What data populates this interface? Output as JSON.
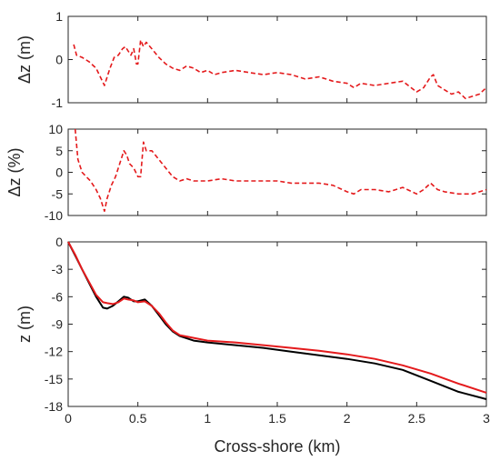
{
  "chart_data": [
    {
      "type": "line",
      "ylabel": "Δz (m)",
      "xlabel": "",
      "xlim": [
        0,
        3
      ],
      "ylim": [
        -1,
        1
      ],
      "yticks": [
        -1,
        0,
        1
      ],
      "ytick_labels": [
        "-1",
        "0",
        "1"
      ],
      "xticks": [
        0,
        0.5,
        1,
        1.5,
        2,
        2.5,
        3
      ],
      "xtick_labels": [],
      "series": [
        {
          "color": "#e41a1c",
          "style": "dashed",
          "x": [
            0.04,
            0.06,
            0.1,
            0.15,
            0.2,
            0.23,
            0.26,
            0.28,
            0.3,
            0.33,
            0.36,
            0.39,
            0.41,
            0.43,
            0.45,
            0.47,
            0.49,
            0.5,
            0.52,
            0.54,
            0.56,
            0.6,
            0.65,
            0.7,
            0.75,
            0.8,
            0.85,
            0.9,
            0.95,
            1.0,
            1.05,
            1.1,
            1.2,
            1.3,
            1.4,
            1.5,
            1.6,
            1.7,
            1.8,
            1.9,
            2.0,
            2.05,
            2.1,
            2.2,
            2.3,
            2.4,
            2.5,
            2.55,
            2.6,
            2.62,
            2.65,
            2.7,
            2.75,
            2.8,
            2.85,
            2.9,
            2.95,
            3.0
          ],
          "y": [
            0.35,
            0.1,
            0.05,
            -0.05,
            -0.2,
            -0.4,
            -0.6,
            -0.4,
            -0.2,
            0.05,
            0.1,
            0.25,
            0.3,
            0.2,
            0.1,
            0.25,
            -0.1,
            -0.1,
            0.45,
            0.3,
            0.4,
            0.25,
            0.05,
            -0.1,
            -0.2,
            -0.25,
            -0.15,
            -0.2,
            -0.3,
            -0.25,
            -0.35,
            -0.3,
            -0.25,
            -0.3,
            -0.35,
            -0.3,
            -0.35,
            -0.45,
            -0.4,
            -0.5,
            -0.55,
            -0.65,
            -0.55,
            -0.6,
            -0.55,
            -0.5,
            -0.75,
            -0.65,
            -0.4,
            -0.35,
            -0.6,
            -0.7,
            -0.8,
            -0.75,
            -0.9,
            -0.85,
            -0.8,
            -0.65
          ]
        }
      ]
    },
    {
      "type": "line",
      "ylabel": "Δz (%)",
      "xlabel": "",
      "xlim": [
        0,
        3
      ],
      "ylim": [
        -10,
        10
      ],
      "yticks": [
        -10,
        -5,
        0,
        5,
        10
      ],
      "ytick_labels": [
        "-10",
        "-5",
        "0",
        "5",
        "10"
      ],
      "xticks": [
        0,
        0.5,
        1,
        1.5,
        2,
        2.5,
        3
      ],
      "xtick_labels": [],
      "series": [
        {
          "color": "#e41a1c",
          "style": "dashed",
          "x": [
            0.05,
            0.07,
            0.1,
            0.13,
            0.16,
            0.2,
            0.23,
            0.26,
            0.28,
            0.31,
            0.34,
            0.37,
            0.4,
            0.42,
            0.44,
            0.47,
            0.5,
            0.52,
            0.54,
            0.56,
            0.6,
            0.65,
            0.7,
            0.75,
            0.8,
            0.85,
            0.9,
            1.0,
            1.1,
            1.2,
            1.3,
            1.4,
            1.5,
            1.6,
            1.7,
            1.8,
            1.9,
            2.0,
            2.05,
            2.1,
            2.2,
            2.3,
            2.4,
            2.5,
            2.55,
            2.6,
            2.65,
            2.7,
            2.8,
            2.9,
            3.0
          ],
          "y": [
            10,
            3,
            0,
            -1,
            -2,
            -4,
            -6,
            -9,
            -6,
            -3,
            -1,
            2,
            5,
            4,
            2,
            1,
            -1,
            -1,
            7,
            5,
            5,
            3,
            1,
            -1,
            -2,
            -1.5,
            -2,
            -2,
            -1.5,
            -2,
            -2,
            -2,
            -2,
            -2.5,
            -2.5,
            -2.5,
            -3,
            -4.5,
            -5,
            -4,
            -4,
            -4.5,
            -3.5,
            -5,
            -4,
            -2.5,
            -4,
            -4.5,
            -5,
            -5,
            -4
          ]
        }
      ]
    },
    {
      "type": "line",
      "ylabel": "z (m)",
      "xlabel": "Cross-shore (km)",
      "xlim": [
        0,
        3
      ],
      "ylim": [
        -18,
        0
      ],
      "yticks": [
        -18,
        -15,
        -12,
        -9,
        -6,
        -3,
        0
      ],
      "ytick_labels": [
        "-18",
        "-15",
        "-12",
        "-9",
        "-6",
        "-3",
        "0"
      ],
      "xticks": [
        0,
        0.5,
        1,
        1.5,
        2,
        2.5,
        3
      ],
      "xtick_labels": [
        "0",
        "0.5",
        "1",
        "1.5",
        "2",
        "2.5",
        "3"
      ],
      "series": [
        {
          "color": "#000000",
          "style": "solid",
          "x": [
            0,
            0.05,
            0.1,
            0.15,
            0.2,
            0.25,
            0.28,
            0.32,
            0.36,
            0.4,
            0.43,
            0.47,
            0.5,
            0.55,
            0.6,
            0.65,
            0.7,
            0.75,
            0.8,
            0.9,
            1.0,
            1.2,
            1.4,
            1.6,
            1.8,
            2.0,
            2.2,
            2.4,
            2.6,
            2.8,
            3.0
          ],
          "y": [
            0,
            -1.5,
            -3,
            -4.5,
            -6,
            -7.2,
            -7.3,
            -7,
            -6.5,
            -6.0,
            -6.1,
            -6.5,
            -6.5,
            -6.3,
            -7.0,
            -8.0,
            -9.0,
            -9.8,
            -10.3,
            -10.8,
            -11.0,
            -11.3,
            -11.6,
            -12.0,
            -12.4,
            -12.8,
            -13.3,
            -14.0,
            -15.2,
            -16.4,
            -17.2
          ]
        },
        {
          "color": "#e41a1c",
          "style": "solid",
          "x": [
            0,
            0.05,
            0.1,
            0.15,
            0.2,
            0.25,
            0.28,
            0.32,
            0.36,
            0.4,
            0.43,
            0.47,
            0.5,
            0.55,
            0.6,
            0.65,
            0.7,
            0.75,
            0.8,
            0.9,
            1.0,
            1.2,
            1.4,
            1.6,
            1.8,
            2.0,
            2.2,
            2.4,
            2.6,
            2.8,
            3.0
          ],
          "y": [
            0,
            -1.4,
            -3,
            -4.4,
            -5.8,
            -6.6,
            -6.7,
            -6.8,
            -6.6,
            -6.2,
            -6.3,
            -6.4,
            -6.6,
            -6.5,
            -7.0,
            -7.8,
            -8.8,
            -9.7,
            -10.2,
            -10.5,
            -10.8,
            -11.0,
            -11.3,
            -11.6,
            -11.9,
            -12.3,
            -12.8,
            -13.5,
            -14.4,
            -15.5,
            -16.5
          ]
        }
      ]
    }
  ]
}
